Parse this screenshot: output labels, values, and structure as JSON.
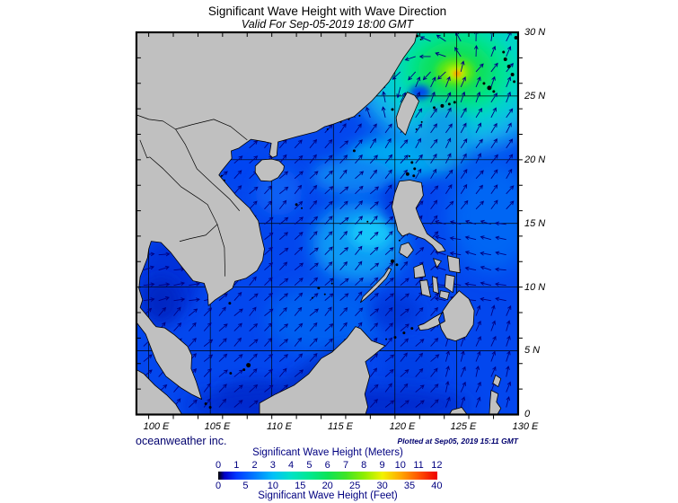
{
  "title": "Significant Wave Height with Wave Direction",
  "subtitle": "Valid For Sep-05-2019 18:00 GMT",
  "credit": "oceanweather inc.",
  "plotted_at": "Plotted at Sep05, 2019 15:11 GMT",
  "axes": {
    "lat_labels": [
      "30 N",
      "25 N",
      "20 N",
      "15 N",
      "10 N",
      "5 N",
      "0"
    ],
    "lon_labels": [
      "100 E",
      "105 E",
      "110 E",
      "115 E",
      "120 E",
      "125 E",
      "130 E"
    ]
  },
  "legend": {
    "meters_caption": "Significant Wave Height (Meters)",
    "feet_caption": "Significant Wave Height (Feet)",
    "meter_ticks": [
      "0",
      "1",
      "2",
      "3",
      "4",
      "5",
      "6",
      "7",
      "8",
      "9",
      "10",
      "11",
      "12"
    ],
    "feet_ticks": [
      "0",
      "5",
      "10",
      "15",
      "20",
      "25",
      "30",
      "35",
      "40"
    ],
    "colorbar_stops": [
      {
        "m": 0,
        "color": "#000000"
      },
      {
        "m": 0.35,
        "color": "#0000c8"
      },
      {
        "m": 1,
        "color": "#0038ff"
      },
      {
        "m": 2,
        "color": "#007cff"
      },
      {
        "m": 3,
        "color": "#00c0f8"
      },
      {
        "m": 4,
        "color": "#00e2c6"
      },
      {
        "m": 5,
        "color": "#00e890"
      },
      {
        "m": 6,
        "color": "#0ee356"
      },
      {
        "m": 7,
        "color": "#3fe426"
      },
      {
        "m": 8,
        "color": "#90ee00"
      },
      {
        "m": 9,
        "color": "#f2f200"
      },
      {
        "m": 10,
        "color": "#ffa800"
      },
      {
        "m": 11,
        "color": "#ff5200"
      },
      {
        "m": 12,
        "color": "#ee0000"
      }
    ]
  },
  "colors": {
    "text_navy": "#000080",
    "land_gray": "#c0c0c0",
    "ocean_blue": "#0347ee",
    "arrow_navy": "#000082",
    "storm_core_orange": "#ff9800"
  }
}
